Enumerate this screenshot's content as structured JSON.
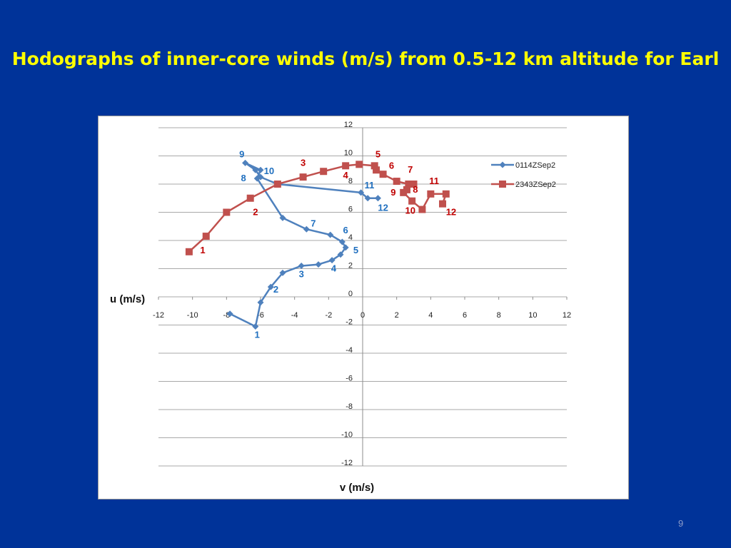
{
  "slide": {
    "title": "Hodographs of inner-core winds (m/s) from 0.5-12 km altitude for Earl",
    "page_number": "9",
    "background_color": "#003399",
    "title_color": "#ffff00"
  },
  "chart_data": {
    "type": "scatter",
    "title": "",
    "xlabel": "v (m/s)",
    "ylabel": "u (m/s)",
    "xlim": [
      -12,
      12
    ],
    "ylim": [
      -12,
      12
    ],
    "x_ticks": [
      "-12",
      "-10",
      "-8",
      "-6",
      "-4",
      "-2",
      "0",
      "2",
      "4",
      "6",
      "8",
      "10",
      "12"
    ],
    "y_ticks": [
      "12",
      "10",
      "8",
      "6",
      "4",
      "2",
      "0",
      "-2",
      "-4",
      "-6",
      "-8",
      "-10",
      "-12"
    ],
    "grid": true,
    "legend_position": "right",
    "series": [
      {
        "name": "0114ZSep2",
        "color": "#4f81bd",
        "marker": "diamond",
        "points": [
          [
            -7.8,
            -1.2
          ],
          [
            -6.3,
            -2.1
          ],
          [
            -6.0,
            -0.4
          ],
          [
            -5.4,
            0.7
          ],
          [
            -4.7,
            1.7
          ],
          [
            -3.6,
            2.2
          ],
          [
            -2.6,
            2.3
          ],
          [
            -1.8,
            2.6
          ],
          [
            -1.3,
            3.0
          ],
          [
            -1.0,
            3.5
          ],
          [
            -1.2,
            3.9
          ],
          [
            -1.9,
            4.4
          ],
          [
            -3.3,
            4.8
          ],
          [
            -4.7,
            5.6
          ],
          [
            -6.2,
            8.4
          ],
          [
            -6.0,
            9.0
          ],
          [
            -6.9,
            9.5
          ],
          [
            -6.3,
            9.0
          ],
          [
            -6.0,
            8.5
          ],
          [
            -5.0,
            8.0
          ],
          [
            -0.1,
            7.4
          ],
          [
            0.3,
            7.0
          ],
          [
            0.9,
            7.0
          ]
        ]
      },
      {
        "name": "2343ZSep2",
        "color": "#c0504d",
        "marker": "square",
        "points": [
          [
            -10.2,
            3.2
          ],
          [
            -9.2,
            4.3
          ],
          [
            -8.0,
            6.0
          ],
          [
            -6.6,
            7.0
          ],
          [
            -5.0,
            8.0
          ],
          [
            -3.5,
            8.5
          ],
          [
            -2.3,
            8.9
          ],
          [
            -1.0,
            9.3
          ],
          [
            -0.2,
            9.4
          ],
          [
            0.7,
            9.3
          ],
          [
            0.8,
            9.0
          ],
          [
            1.2,
            8.7
          ],
          [
            2.0,
            8.2
          ],
          [
            2.7,
            8.0
          ],
          [
            3.0,
            8.0
          ],
          [
            2.6,
            7.6
          ],
          [
            2.4,
            7.4
          ],
          [
            2.9,
            6.8
          ],
          [
            3.5,
            6.2
          ],
          [
            4.0,
            7.3
          ],
          [
            4.9,
            7.3
          ],
          [
            4.7,
            6.6
          ]
        ]
      }
    ],
    "annotations": [
      {
        "series": 0,
        "text": "1",
        "x": -6.2,
        "y": -2.9
      },
      {
        "series": 0,
        "text": "2",
        "x": -5.1,
        "y": 0.3
      },
      {
        "series": 0,
        "text": "3",
        "x": -3.6,
        "y": 1.4
      },
      {
        "series": 0,
        "text": "4",
        "x": -1.7,
        "y": 1.8
      },
      {
        "series": 0,
        "text": "5",
        "x": -0.4,
        "y": 3.1
      },
      {
        "series": 0,
        "text": "6",
        "x": -1.0,
        "y": 4.5
      },
      {
        "series": 0,
        "text": "7",
        "x": -2.9,
        "y": 5.0
      },
      {
        "series": 0,
        "text": "8",
        "x": -7.0,
        "y": 8.2
      },
      {
        "series": 0,
        "text": "9",
        "x": -7.1,
        "y": 9.9
      },
      {
        "series": 0,
        "text": "10",
        "x": -5.5,
        "y": 8.7
      },
      {
        "series": 0,
        "text": "11",
        "x": 0.4,
        "y": 7.7
      },
      {
        "series": 0,
        "text": "12",
        "x": 1.2,
        "y": 6.1
      },
      {
        "series": 1,
        "text": "1",
        "x": -9.4,
        "y": 3.1
      },
      {
        "series": 1,
        "text": "2",
        "x": -6.3,
        "y": 5.8
      },
      {
        "series": 1,
        "text": "3",
        "x": -3.5,
        "y": 9.3
      },
      {
        "series": 1,
        "text": "4",
        "x": -1.0,
        "y": 8.4
      },
      {
        "series": 1,
        "text": "5",
        "x": 0.9,
        "y": 9.9
      },
      {
        "series": 1,
        "text": "6",
        "x": 1.7,
        "y": 9.1
      },
      {
        "series": 1,
        "text": "7",
        "x": 2.8,
        "y": 8.8
      },
      {
        "series": 1,
        "text": "8",
        "x": 3.1,
        "y": 7.4
      },
      {
        "series": 1,
        "text": "9",
        "x": 1.8,
        "y": 7.2
      },
      {
        "series": 1,
        "text": "10",
        "x": 2.8,
        "y": 5.9
      },
      {
        "series": 1,
        "text": "11",
        "x": 4.2,
        "y": 8.0
      },
      {
        "series": 1,
        "text": "12",
        "x": 5.2,
        "y": 5.8
      }
    ]
  }
}
